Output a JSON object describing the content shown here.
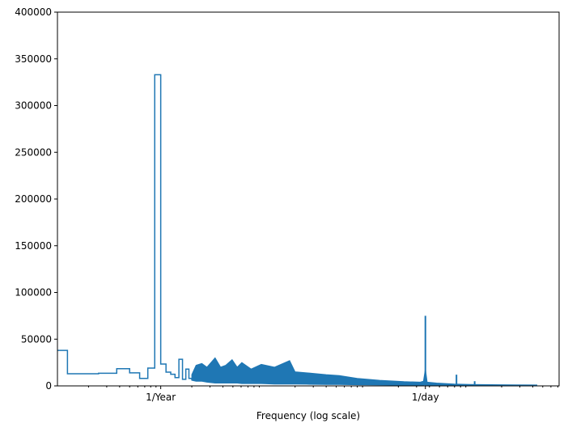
{
  "chart_data": {
    "type": "line",
    "style": "step",
    "title": "",
    "xlabel": "Frequency (log scale)",
    "ylabel": "",
    "xscale": "log",
    "xlim": [
      0.1,
      7200
    ],
    "ylim": [
      0,
      400000
    ],
    "grid": false,
    "color": "#1f77b4",
    "xticks": [
      {
        "value": 1,
        "label": "1/Year"
      },
      {
        "value": 365.2524,
        "label": "1/day"
      }
    ],
    "yticks": [
      0,
      50000,
      100000,
      150000,
      200000,
      250000,
      300000,
      350000,
      400000
    ],
    "ytick_labels": [
      "0",
      "50000",
      "100000",
      "150000",
      "200000",
      "250000",
      "300000",
      "350000",
      "400000"
    ],
    "series_steps": [
      [
        0.1,
        38000
      ],
      [
        0.125,
        13000
      ],
      [
        0.25,
        13500
      ],
      [
        0.375,
        18400
      ],
      [
        0.5,
        14000
      ],
      [
        0.625,
        8000
      ],
      [
        0.75,
        19000
      ],
      [
        0.875,
        333000
      ],
      [
        1.0,
        23400
      ],
      [
        1.125,
        14700
      ],
      [
        1.25,
        12400
      ],
      [
        1.375,
        8900
      ],
      [
        1.5,
        28500
      ],
      [
        1.625,
        7000
      ],
      [
        1.75,
        18000
      ],
      [
        1.875,
        8000
      ],
      [
        2.0,
        6000
      ]
    ],
    "band": [
      [
        2.0,
        6000,
        12000
      ],
      [
        2.2,
        5000,
        22000
      ],
      [
        2.5,
        5000,
        24000
      ],
      [
        2.8,
        4000,
        20000
      ],
      [
        3.36,
        3000,
        30000
      ],
      [
        3.8,
        3000,
        20000
      ],
      [
        4.25,
        3000,
        22000
      ],
      [
        4.91,
        3000,
        28000
      ],
      [
        5.5,
        3000,
        20000
      ],
      [
        6.1,
        2500,
        25000
      ],
      [
        7.5,
        2500,
        18000
      ],
      [
        9.42,
        2500,
        23000
      ],
      [
        12.6,
        2000,
        20000
      ],
      [
        17.7,
        2000,
        27000
      ],
      [
        20,
        2000,
        15000
      ],
      [
        25.9,
        1800,
        14000
      ],
      [
        40,
        1500,
        12000
      ],
      [
        53.5,
        1500,
        11000
      ],
      [
        80,
        1200,
        8000
      ],
      [
        132,
        1000,
        6000
      ],
      [
        227,
        800,
        4500
      ],
      [
        326,
        800,
        4000
      ],
      [
        350,
        800,
        5000
      ],
      [
        365.25,
        1500,
        18000
      ],
      [
        380,
        800,
        4000
      ],
      [
        469,
        600,
        3000
      ],
      [
        700,
        400,
        2000
      ],
      [
        1000,
        300,
        1500
      ],
      [
        1991,
        200,
        1200
      ],
      [
        4383,
        200,
        1000
      ]
    ],
    "spikes": [
      {
        "f": 365.2524,
        "value": 75000
      },
      {
        "f": 730.5,
        "value": 12000
      },
      {
        "f": 1095.76,
        "value": 5000
      }
    ]
  }
}
